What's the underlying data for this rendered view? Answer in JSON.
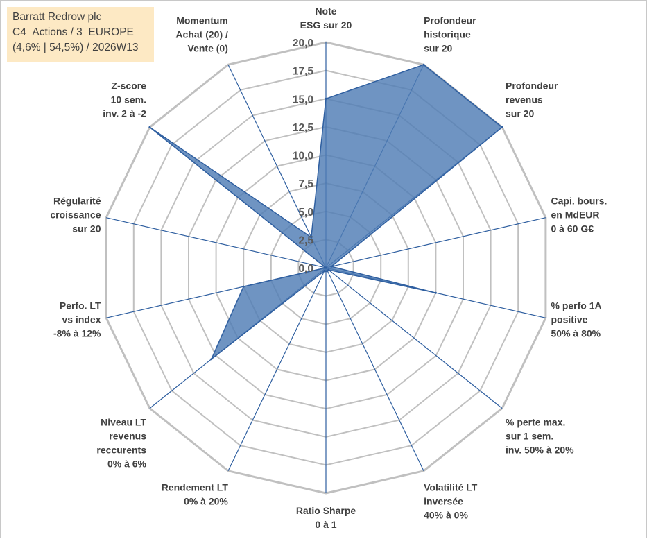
{
  "info_box": {
    "line1": "Barratt Redrow plc",
    "line2": "C4_Actions / 3_EUROPE",
    "line3": "(4,6% | 54,5%) / 2026W13"
  },
  "colors": {
    "fill": "#4f7db5",
    "stroke": "#2f5fa0",
    "grid": "#c0c0c0",
    "spoke": "#2f5fa0",
    "text": "#404040"
  },
  "chart_data": {
    "type": "radar",
    "title": "",
    "rmin": 0,
    "rmax": 20,
    "tick_values": [
      0,
      2.5,
      5,
      7.5,
      10,
      12.5,
      15,
      17.5,
      20
    ],
    "tick_labels": [
      "0,0",
      "2,5",
      "5,0",
      "7,5",
      "10,0",
      "12,5",
      "15,0",
      "17,5",
      "20,0"
    ],
    "axes": [
      {
        "label": [
          "Note",
          "ESG sur 20"
        ],
        "value": 15.0
      },
      {
        "label": [
          "Profondeur",
          "historique",
          "sur 20"
        ],
        "value": 20.0
      },
      {
        "label": [
          "Profondeur",
          "revenus",
          "sur 20"
        ],
        "value": 20.0
      },
      {
        "label": [
          "Capi. bours.",
          "en MdEUR",
          "0 à 60 G€"
        ],
        "value": 0.5
      },
      {
        "label": [
          "% perfo 1A",
          "positive",
          "50% à 80%"
        ],
        "value": 10.0
      },
      {
        "label": [
          "% perte max.",
          "sur 1 sem.",
          "inv. 50% à 20%"
        ],
        "value": 0.3
      },
      {
        "label": [
          "Volatilité LT",
          "inversée",
          "40% à 0%"
        ],
        "value": 0.3
      },
      {
        "label": [
          "Ratio Sharpe",
          "0 à 1"
        ],
        "value": 0.3
      },
      {
        "label": [
          "Rendement LT",
          "0% à 20%"
        ],
        "value": 0.3
      },
      {
        "label": [
          "Niveau LT",
          "revenus",
          "reccurents",
          "0% à 6%"
        ],
        "value": 13.0
      },
      {
        "label": [
          "Perfo. LT",
          "vs index",
          "-8% à 12%"
        ],
        "value": 7.5
      },
      {
        "label": [
          "Régularité",
          "croissance",
          "sur 20"
        ],
        "value": 0.0
      },
      {
        "label": [
          "Z-score",
          "10 sem.",
          "inv. 2 à -2"
        ],
        "value": 20.0
      },
      {
        "label": [
          "Momentum",
          "Achat (20) /",
          "Vente (0)"
        ],
        "value": 3.0
      }
    ]
  }
}
